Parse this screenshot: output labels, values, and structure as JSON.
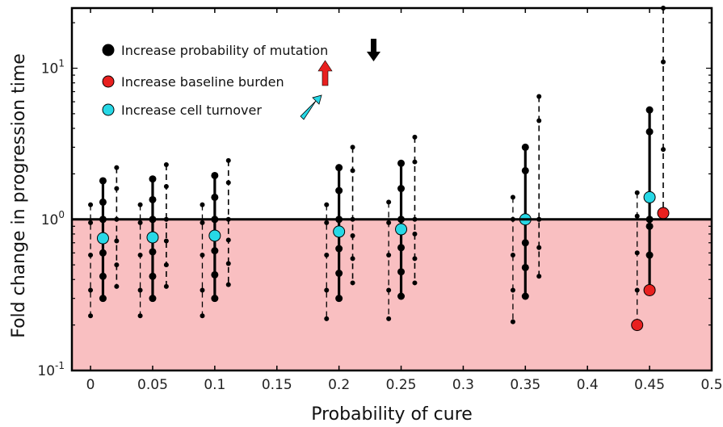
{
  "chart_data": {
    "type": "scatter",
    "xlabel": "Probability of cure",
    "ylabel": "Fold change in progression time",
    "xlim": [
      -0.015,
      0.5
    ],
    "ylim": [
      0.1,
      25
    ],
    "yscale": "log",
    "x_ticks": [
      0,
      0.05,
      0.1,
      0.15,
      0.2,
      0.25,
      0.3,
      0.35,
      0.4,
      0.45,
      0.5
    ],
    "x_tick_labels": [
      "0",
      "0.05",
      "0.1",
      "0.15",
      "0.2",
      "0.25",
      "0.3",
      "0.35",
      "0.4",
      "0.45",
      "0.5"
    ],
    "y_ticks": [
      {
        "value": 0.1,
        "base": "10",
        "exp": "-1"
      },
      {
        "value": 1,
        "base": "10",
        "exp": "0"
      },
      {
        "value": 10,
        "base": "10",
        "exp": "1"
      }
    ],
    "reference_line": 1,
    "shaded_region": {
      "from": 0.1,
      "to": 1,
      "color": "#f9bfc1"
    },
    "legend": {
      "position": "top-left",
      "entries": [
        {
          "label": "Increase probability of mutation",
          "marker_color": "#000000",
          "arrow": "down",
          "arrow_color": "#000000"
        },
        {
          "label": "Increase baseline burden",
          "marker_color": "#e8201f",
          "arrow": "up",
          "arrow_color": "#e8201f"
        },
        {
          "label": "Increase cell turnover",
          "marker_color": "#27d8e6",
          "arrow": "up-right",
          "arrow_color": "#27d8e6"
        }
      ]
    },
    "groups": [
      {
        "x": 0.01,
        "center": 0.75,
        "mutation": {
          "x": 0.01,
          "values": [
            1.8,
            1.3,
            1.0,
            0.6,
            0.42,
            0.3
          ]
        },
        "burden": {
          "x": 0.0,
          "values": [
            1.25,
            0.95,
            0.58,
            0.34,
            0.23
          ]
        },
        "turnover": {
          "x": 0.021,
          "values": [
            2.2,
            1.6,
            1.0,
            0.72,
            0.5,
            0.36
          ]
        }
      },
      {
        "x": 0.05,
        "center": 0.76,
        "mutation": {
          "x": 0.05,
          "values": [
            1.85,
            1.35,
            1.0,
            0.61,
            0.42,
            0.3
          ]
        },
        "burden": {
          "x": 0.04,
          "values": [
            1.25,
            0.95,
            0.58,
            0.34,
            0.23
          ]
        },
        "turnover": {
          "x": 0.061,
          "values": [
            2.3,
            1.65,
            1.0,
            0.72,
            0.5,
            0.36
          ]
        }
      },
      {
        "x": 0.1,
        "center": 0.78,
        "mutation": {
          "x": 0.1,
          "values": [
            1.95,
            1.4,
            1.0,
            0.62,
            0.43,
            0.3
          ]
        },
        "burden": {
          "x": 0.09,
          "values": [
            1.25,
            0.95,
            0.58,
            0.34,
            0.23
          ]
        },
        "turnover": {
          "x": 0.111,
          "values": [
            2.45,
            1.75,
            1.0,
            0.73,
            0.51,
            0.37
          ]
        }
      },
      {
        "x": 0.2,
        "center": 0.83,
        "mutation": {
          "x": 0.2,
          "values": [
            2.2,
            1.55,
            1.0,
            0.64,
            0.44,
            0.3
          ]
        },
        "burden": {
          "x": 0.19,
          "values": [
            1.25,
            0.95,
            0.58,
            0.34,
            0.22
          ]
        },
        "turnover": {
          "x": 0.211,
          "values": [
            3.0,
            2.1,
            1.0,
            0.78,
            0.55,
            0.38
          ]
        }
      },
      {
        "x": 0.25,
        "center": 0.86,
        "mutation": {
          "x": 0.25,
          "values": [
            2.35,
            1.6,
            1.0,
            0.65,
            0.45,
            0.31
          ]
        },
        "burden": {
          "x": 0.24,
          "values": [
            1.3,
            0.95,
            0.58,
            0.34,
            0.22
          ]
        },
        "turnover": {
          "x": 0.261,
          "values": [
            3.5,
            2.4,
            1.0,
            0.8,
            0.55,
            0.38
          ]
        }
      },
      {
        "x": 0.35,
        "center": 1.0,
        "mutation": {
          "x": 0.35,
          "values": [
            3.0,
            2.1,
            1.0,
            0.7,
            0.48,
            0.31
          ]
        },
        "burden": {
          "x": 0.34,
          "values": [
            1.4,
            1.0,
            0.58,
            0.34,
            0.21
          ]
        },
        "turnover": {
          "x": 0.361,
          "values": [
            6.5,
            4.5,
            1.0,
            1.0,
            0.65,
            0.42
          ]
        }
      },
      {
        "x": 0.45,
        "center": 1.4,
        "mutation": {
          "x": 0.45,
          "values": [
            5.3,
            3.8,
            1.0,
            0.9,
            0.58,
            0.34
          ]
        },
        "burden": {
          "x": 0.44,
          "values": [
            1.5,
            1.05,
            0.6,
            0.34,
            0.2
          ]
        },
        "turnover": {
          "x": 0.461,
          "values": [
            25,
            11,
            2.9,
            1.1
          ]
        },
        "red_points": [
          {
            "x": 0.44,
            "y": 0.2
          },
          {
            "x": 0.45,
            "y": 0.34
          },
          {
            "x": 0.461,
            "y": 1.1
          }
        ]
      }
    ]
  }
}
